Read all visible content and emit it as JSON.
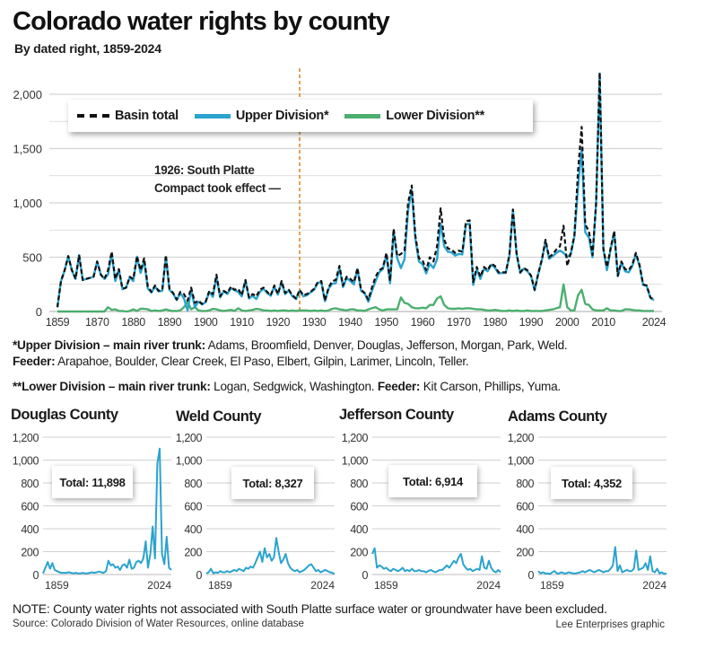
{
  "title": "Colorado water rights by county",
  "subtitle": "By dated right, 1859-2024",
  "chart_data": [
    {
      "type": "line",
      "title": "Colorado water rights by county",
      "subtitle": "By dated right, 1859-2024",
      "x_start": 1859,
      "x_end": 2024,
      "xticks": [
        1859,
        1870,
        1880,
        1890,
        1900,
        1910,
        1920,
        1930,
        1940,
        1950,
        1960,
        1970,
        1980,
        1990,
        2000,
        2010,
        2024
      ],
      "xtick_labels": [
        "1859",
        "1870",
        "1880",
        "1890",
        "1900",
        "1910",
        "1920",
        "1930",
        "1940",
        "1950",
        "1960",
        "1970",
        "1980",
        "1990",
        "2000",
        "2010",
        "2024"
      ],
      "ylim": [
        0,
        2200
      ],
      "yticks": [
        0,
        500,
        1000,
        1500,
        2000
      ],
      "ytick_labels": [
        "0",
        "500",
        "1,000",
        "1,500",
        "2,000"
      ],
      "grid": true,
      "legend_placement": "top-left",
      "annotation": {
        "year": 1926,
        "line1": "1926: South Platte",
        "line2": "Compact took effect —",
        "color": "#d98a2b"
      },
      "series": [
        {
          "name": "Basin total",
          "color": "#111111",
          "style": "dashed",
          "values": [
            40,
            280,
            380,
            510,
            380,
            300,
            520,
            290,
            300,
            310,
            320,
            460,
            340,
            300,
            380,
            550,
            300,
            390,
            210,
            220,
            320,
            300,
            510,
            380,
            490,
            230,
            180,
            240,
            190,
            200,
            520,
            210,
            170,
            110,
            180,
            160,
            100,
            220,
            80,
            100,
            70,
            90,
            190,
            160,
            340,
            140,
            190,
            170,
            230,
            200,
            210,
            150,
            290,
            130,
            160,
            140,
            200,
            220,
            180,
            150,
            240,
            160,
            280,
            170,
            200,
            150,
            120,
            200,
            150,
            160,
            180,
            210,
            270,
            280,
            100,
            220,
            280,
            290,
            420,
            240,
            320,
            300,
            270,
            400,
            200,
            170,
            110,
            220,
            320,
            380,
            400,
            540,
            280,
            760,
            510,
            530,
            560,
            1000,
            1160,
            700,
            490,
            470,
            380,
            500,
            460,
            600,
            950,
            660,
            580,
            570,
            540,
            560,
            550,
            830,
            840,
            270,
            410,
            320,
            410,
            380,
            440,
            420,
            360,
            360,
            360,
            520,
            940,
            540,
            360,
            400,
            380,
            330,
            200,
            350,
            480,
            660,
            500,
            530,
            570,
            600,
            790,
            420,
            540,
            700,
            1300,
            1700,
            800,
            740,
            520,
            1000,
            2200,
            580,
            410,
            580,
            740,
            330,
            460,
            390,
            380,
            430,
            540,
            430,
            250,
            240,
            130,
            110
          ]
        },
        {
          "name": "Upper Division*",
          "color": "#2ba3cf",
          "style": "solid",
          "values": [
            40,
            280,
            380,
            510,
            380,
            300,
            520,
            290,
            300,
            310,
            320,
            460,
            340,
            300,
            340,
            535,
            280,
            385,
            205,
            220,
            315,
            280,
            505,
            355,
            465,
            210,
            175,
            230,
            185,
            190,
            500,
            200,
            165,
            105,
            170,
            120,
            10,
            200,
            40,
            90,
            65,
            85,
            180,
            135,
            320,
            130,
            185,
            160,
            215,
            195,
            180,
            140,
            285,
            120,
            145,
            115,
            180,
            210,
            170,
            145,
            230,
            155,
            270,
            160,
            195,
            140,
            115,
            190,
            140,
            150,
            175,
            200,
            265,
            270,
            95,
            210,
            255,
            260,
            400,
            225,
            310,
            280,
            250,
            390,
            190,
            165,
            90,
            190,
            280,
            360,
            390,
            520,
            260,
            740,
            490,
            400,
            480,
            930,
            1120,
            670,
            460,
            435,
            350,
            440,
            400,
            480,
            810,
            600,
            550,
            545,
            515,
            530,
            525,
            800,
            810,
            245,
            390,
            300,
            395,
            370,
            430,
            405,
            350,
            355,
            355,
            510,
            935,
            530,
            355,
            395,
            370,
            325,
            195,
            345,
            475,
            650,
            485,
            510,
            540,
            560,
            540,
            500,
            530,
            690,
            1150,
            1500,
            730,
            680,
            500,
            990,
            2190,
            570,
            380,
            570,
            730,
            325,
            455,
            370,
            360,
            415,
            530,
            420,
            245,
            235,
            125,
            105
          ]
        },
        {
          "name": "Lower Division**",
          "color": "#4caf6e",
          "style": "solid",
          "values": [
            0,
            0,
            0,
            0,
            0,
            0,
            0,
            0,
            0,
            0,
            0,
            0,
            0,
            0,
            40,
            15,
            20,
            5,
            5,
            0,
            5,
            20,
            5,
            25,
            25,
            20,
            5,
            10,
            5,
            10,
            20,
            10,
            5,
            5,
            10,
            40,
            90,
            20,
            40,
            10,
            5,
            5,
            10,
            25,
            20,
            10,
            5,
            10,
            15,
            5,
            30,
            10,
            5,
            10,
            15,
            25,
            20,
            10,
            10,
            5,
            10,
            5,
            10,
            10,
            5,
            10,
            5,
            10,
            10,
            10,
            5,
            10,
            5,
            10,
            5,
            10,
            25,
            30,
            20,
            15,
            10,
            20,
            20,
            10,
            10,
            5,
            20,
            30,
            40,
            20,
            10,
            20,
            20,
            20,
            20,
            130,
            80,
            70,
            40,
            30,
            30,
            35,
            30,
            60,
            60,
            120,
            140,
            60,
            30,
            25,
            25,
            30,
            25,
            30,
            30,
            25,
            20,
            20,
            15,
            10,
            10,
            15,
            10,
            5,
            5,
            10,
            5,
            10,
            5,
            5,
            10,
            5,
            5,
            5,
            5,
            10,
            15,
            20,
            30,
            40,
            250,
            40,
            10,
            10,
            150,
            200,
            70,
            60,
            20,
            10,
            10,
            10,
            30,
            10,
            10,
            5,
            5,
            20,
            20,
            15,
            10,
            10,
            5,
            5,
            5,
            5
          ]
        }
      ]
    },
    {
      "type": "line",
      "title": "Douglas County",
      "total": "Total: 11,898",
      "x_start": 1859,
      "x_end": 2024,
      "xtick_labels": [
        "1859",
        "2024"
      ],
      "ylim": [
        0,
        1200
      ],
      "yticks": [
        0,
        200,
        400,
        600,
        800,
        1000,
        1200
      ],
      "ytick_labels": [
        "0",
        "200",
        "400",
        "600",
        "800",
        "1,000",
        "1,200"
      ],
      "color": "#2ba3cf",
      "values": [
        10,
        60,
        110,
        50,
        100,
        40,
        30,
        20,
        15,
        15,
        15,
        20,
        15,
        10,
        15,
        10,
        10,
        15,
        10,
        10,
        15,
        20,
        15,
        20,
        25,
        20,
        15,
        30,
        120,
        80,
        90,
        60,
        70,
        40,
        80,
        90,
        60,
        130,
        50,
        60,
        110,
        120,
        100,
        140,
        290,
        60,
        180,
        420,
        140,
        970,
        1100,
        180,
        90,
        330,
        60,
        40
      ]
    },
    {
      "type": "line",
      "title": "Weld County",
      "total": "Total: 8,327",
      "x_start": 1859,
      "x_end": 2024,
      "xtick_labels": [
        "1859",
        "2024"
      ],
      "ylim": [
        0,
        1200
      ],
      "yticks": [
        0,
        200,
        400,
        600,
        800,
        1000,
        1200
      ],
      "ytick_labels": [
        "0",
        "200",
        "400",
        "600",
        "800",
        "1,000",
        "1,200"
      ],
      "color": "#2ba3cf",
      "values": [
        10,
        20,
        50,
        10,
        20,
        15,
        30,
        20,
        20,
        30,
        20,
        30,
        40,
        30,
        50,
        40,
        30,
        60,
        50,
        70,
        60,
        100,
        150,
        200,
        110,
        230,
        150,
        180,
        120,
        150,
        320,
        200,
        100,
        130,
        180,
        100,
        60,
        40,
        30,
        40,
        20,
        30,
        40,
        60,
        80,
        90,
        60,
        30,
        40,
        20,
        30,
        40,
        30,
        20,
        15,
        5
      ]
    },
    {
      "type": "line",
      "title": "Jefferson County",
      "total": "Total: 6,914",
      "x_start": 1859,
      "x_end": 2024,
      "xtick_labels": [
        "1859",
        "2024"
      ],
      "ylim": [
        0,
        1200
      ],
      "yticks": [
        0,
        200,
        400,
        600,
        800,
        1000,
        1200
      ],
      "ytick_labels": [
        "0",
        "200",
        "400",
        "600",
        "800",
        "1,000",
        "1,200"
      ],
      "color": "#2ba3cf",
      "values": [
        180,
        230,
        60,
        80,
        70,
        50,
        60,
        40,
        30,
        50,
        40,
        30,
        40,
        60,
        30,
        40,
        30,
        50,
        30,
        30,
        40,
        30,
        30,
        20,
        30,
        40,
        30,
        20,
        30,
        40,
        40,
        60,
        80,
        60,
        90,
        120,
        100,
        150,
        180,
        90,
        60,
        40,
        50,
        30,
        40,
        50,
        40,
        160,
        60,
        50,
        120,
        60,
        30,
        20,
        40,
        20
      ]
    },
    {
      "type": "line",
      "title": "Adams County",
      "total": "Total: 4,352",
      "x_start": 1859,
      "x_end": 2024,
      "xtick_labels": [
        "1859",
        "2024"
      ],
      "ylim": [
        0,
        1200
      ],
      "yticks": [
        0,
        200,
        400,
        600,
        800,
        1000,
        1200
      ],
      "ytick_labels": [
        "0",
        "200",
        "400",
        "600",
        "800",
        "1,000",
        "1,200"
      ],
      "color": "#2ba3cf",
      "values": [
        30,
        10,
        20,
        10,
        10,
        5,
        20,
        30,
        10,
        10,
        20,
        10,
        10,
        20,
        15,
        10,
        10,
        15,
        20,
        30,
        20,
        30,
        40,
        30,
        20,
        30,
        40,
        30,
        20,
        30,
        30,
        50,
        80,
        240,
        30,
        80,
        20,
        30,
        40,
        30,
        30,
        50,
        210,
        40,
        50,
        60,
        100,
        40,
        160,
        30,
        20,
        50,
        10,
        20,
        5,
        10
      ]
    }
  ],
  "footnotes": {
    "upper_bold": "*Upper Division – main river trunk:",
    "upper_text": " Adams, Broomfield, Denver, Douglas, Jefferson, Morgan, Park, Weld.",
    "feeder_bold": "Feeder:",
    "feeder_text": " Arapahoe, Boulder, Clear Creek, El Paso, Elbert, Gilpin, Larimer, Lincoln, Teller.",
    "lower_bold": "**Lower Division – main river trunk:",
    "lower_text": " Logan, Sedgwick, Washington. ",
    "lower_feeder_bold": "Feeder:",
    "lower_feeder_text": " Kit Carson, Phillips, Yuma."
  },
  "note": "NOTE: County water rights not associated with South Platte surface water or groundwater have been excluded.",
  "source": "Source: Colorado Division of Water Resources, online database",
  "credit": "Lee Enterprises graphic"
}
